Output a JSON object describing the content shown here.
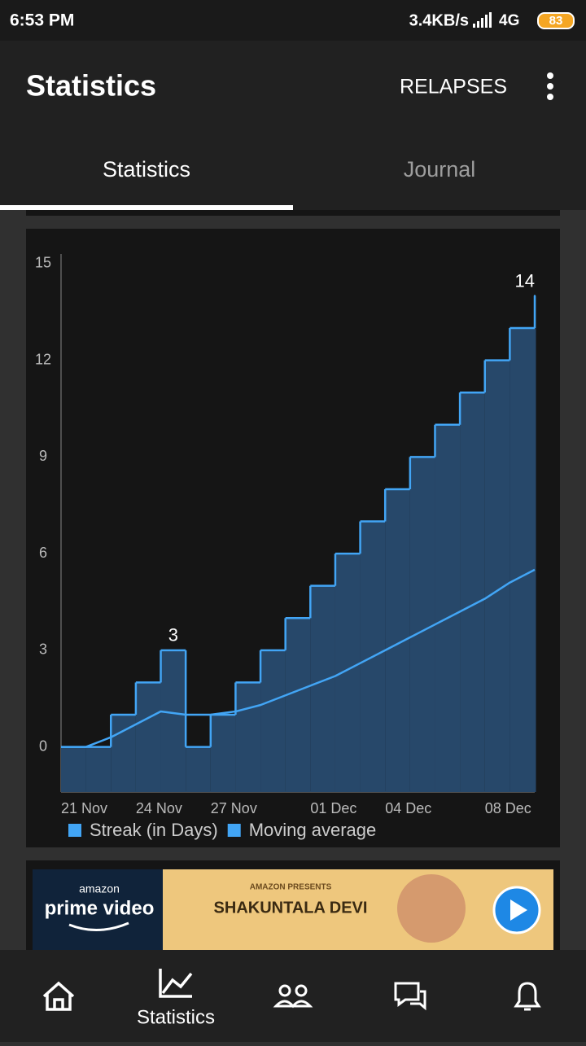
{
  "status_bar": {
    "time": "6:53 PM",
    "speed": "3.4KB/s",
    "network": "4G",
    "battery": "83"
  },
  "app_bar": {
    "title": "Statistics",
    "action": "RELAPSES"
  },
  "tabs": [
    "Statistics",
    "Journal"
  ],
  "chart_data": {
    "type": "step-area",
    "categories": [
      "21 Nov",
      null,
      null,
      "24 Nov",
      null,
      null,
      "27 Nov",
      null,
      null,
      null,
      "01 Dec",
      null,
      null,
      "04 Dec",
      null,
      null,
      null,
      "08 Dec",
      null,
      null
    ],
    "series": [
      {
        "name": "Streak (in Days)",
        "color": "#42a5f5",
        "fill": "#27486a",
        "values": [
          0,
          0,
          1,
          2,
          3,
          0,
          1,
          2,
          3,
          4,
          5,
          6,
          7,
          8,
          9,
          10,
          11,
          12,
          13,
          14
        ],
        "value_labels": [
          null,
          null,
          null,
          null,
          "3",
          null,
          null,
          null,
          null,
          null,
          null,
          null,
          null,
          null,
          null,
          null,
          null,
          null,
          null,
          "14"
        ]
      },
      {
        "name": "Moving average",
        "color": "#42a5f5",
        "values": [
          0,
          0,
          0.3,
          0.7,
          1.1,
          1.0,
          1.0,
          1.1,
          1.3,
          1.6,
          1.9,
          2.2,
          2.6,
          3.0,
          3.4,
          3.8,
          4.2,
          4.6,
          5.1,
          5.5
        ]
      }
    ],
    "ylim": [
      -1.4,
      15.3
    ],
    "yticks": [
      0,
      3,
      6,
      9,
      12,
      15
    ],
    "grid": false
  },
  "ad": {
    "brand": "amazon",
    "product": "prime video",
    "presents": "AMAZON PRESENTS",
    "movie": "SHAKUNTALA DEVI"
  },
  "bottom_nav": {
    "active_label": "Statistics"
  }
}
